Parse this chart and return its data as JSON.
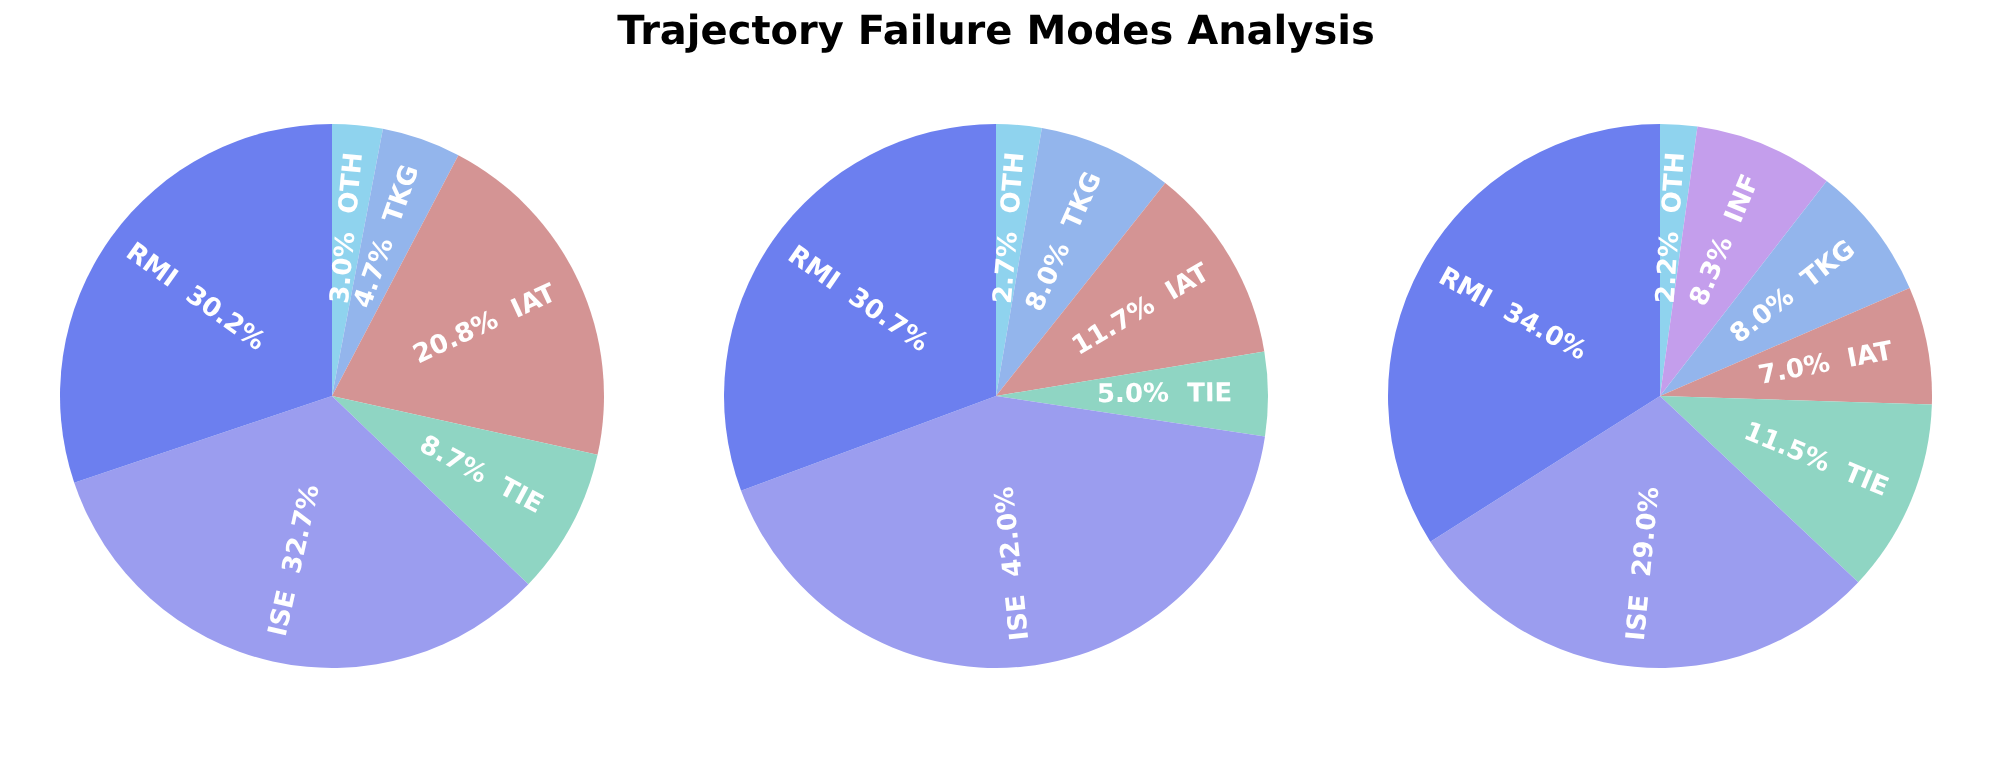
{
  "chart_data": [
    {
      "type": "pie",
      "categories": [
        "OTH",
        "TKG",
        "IAT",
        "TIE",
        "ISE",
        "RMI"
      ],
      "values": [
        3.0,
        4.7,
        20.8,
        8.7,
        32.7,
        30.2
      ],
      "value_labels": [
        "3.0%",
        "4.7%",
        "20.8%",
        "8.7%",
        "32.7%",
        "30.2%"
      ],
      "colors": [
        "#8fd3ee",
        "#93b5ec",
        "#d49494",
        "#8fd5c3",
        "#9b9def",
        "#6c7fef"
      ]
    },
    {
      "type": "pie",
      "title": "Trajectory Failure Modes Analysis",
      "categories": [
        "OTH",
        "TKG",
        "IAT",
        "TIE",
        "ISE",
        "RMI"
      ],
      "values": [
        2.7,
        8.0,
        11.7,
        5.0,
        42.0,
        30.7
      ],
      "value_labels": [
        "2.7%",
        "8.0%",
        "11.7%",
        "5.0%",
        "42.0%",
        "30.7%"
      ],
      "colors": [
        "#8fd3ee",
        "#93b5ec",
        "#d49494",
        "#8fd5c3",
        "#9b9def",
        "#6c7fef"
      ]
    },
    {
      "type": "pie",
      "categories": [
        "OTH",
        "INF",
        "TKG",
        "IAT",
        "TIE",
        "ISE",
        "RMI"
      ],
      "values": [
        2.2,
        8.3,
        8.0,
        7.0,
        11.5,
        29.0,
        34.0
      ],
      "value_labels": [
        "2.2%",
        "8.3%",
        "8.0%",
        "7.0%",
        "11.5%",
        "29.0%",
        "34.0%"
      ],
      "colors": [
        "#8fd3ee",
        "#c49eec",
        "#93b5ec",
        "#d49494",
        "#8fd5c3",
        "#9b9def",
        "#6c7fef"
      ]
    }
  ]
}
